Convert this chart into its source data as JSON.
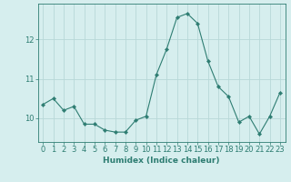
{
  "x": [
    0,
    1,
    2,
    3,
    4,
    5,
    6,
    7,
    8,
    9,
    10,
    11,
    12,
    13,
    14,
    15,
    16,
    17,
    18,
    19,
    20,
    21,
    22,
    23
  ],
  "y": [
    10.35,
    10.5,
    10.2,
    10.3,
    9.85,
    9.85,
    9.7,
    9.65,
    9.65,
    9.95,
    10.05,
    11.1,
    11.75,
    12.55,
    12.65,
    12.4,
    11.45,
    10.8,
    10.55,
    9.9,
    10.05,
    9.6,
    10.05,
    10.65
  ],
  "line_color": "#2e7d72",
  "marker": "D",
  "marker_size": 2.2,
  "bg_color": "#d6eeee",
  "grid_color": "#b8d8d8",
  "axis_color": "#2e7d72",
  "tick_color": "#2e7d72",
  "xlabel": "Humidex (Indice chaleur)",
  "ylim": [
    9.4,
    12.9
  ],
  "xlim": [
    -0.5,
    23.5
  ],
  "yticks": [
    10,
    11,
    12
  ],
  "xticks": [
    0,
    1,
    2,
    3,
    4,
    5,
    6,
    7,
    8,
    9,
    10,
    11,
    12,
    13,
    14,
    15,
    16,
    17,
    18,
    19,
    20,
    21,
    22,
    23
  ],
  "label_fontsize": 6.5,
  "tick_fontsize": 6.0
}
